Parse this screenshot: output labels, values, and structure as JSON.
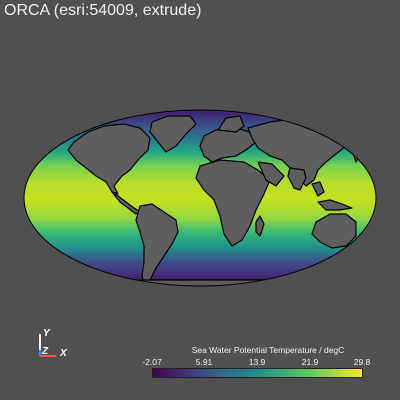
{
  "title": "ORCA (esri:54009, extrude)",
  "colors": {
    "background": "#505050",
    "land": "#5e5e5e",
    "coastline": "#000000",
    "viridis": [
      "#440154",
      "#3b528b",
      "#21918c",
      "#5ec962",
      "#fde725"
    ]
  },
  "axes": {
    "y_label": "Y",
    "z_label": "Z",
    "x_label": "X",
    "y_color": "#f2f2f2",
    "z_color": "#2f8fff",
    "x_color": "#ff5a3a"
  },
  "colorbar": {
    "title": "Sea Water Potential Temperature / degC",
    "ticks": [
      "-2.07",
      "5.91",
      "13.9",
      "21.9",
      "29.8"
    ],
    "min": -2.07,
    "max": 29.8,
    "colormap": "viridis"
  },
  "map": {
    "projection": "Mollweide"
  }
}
